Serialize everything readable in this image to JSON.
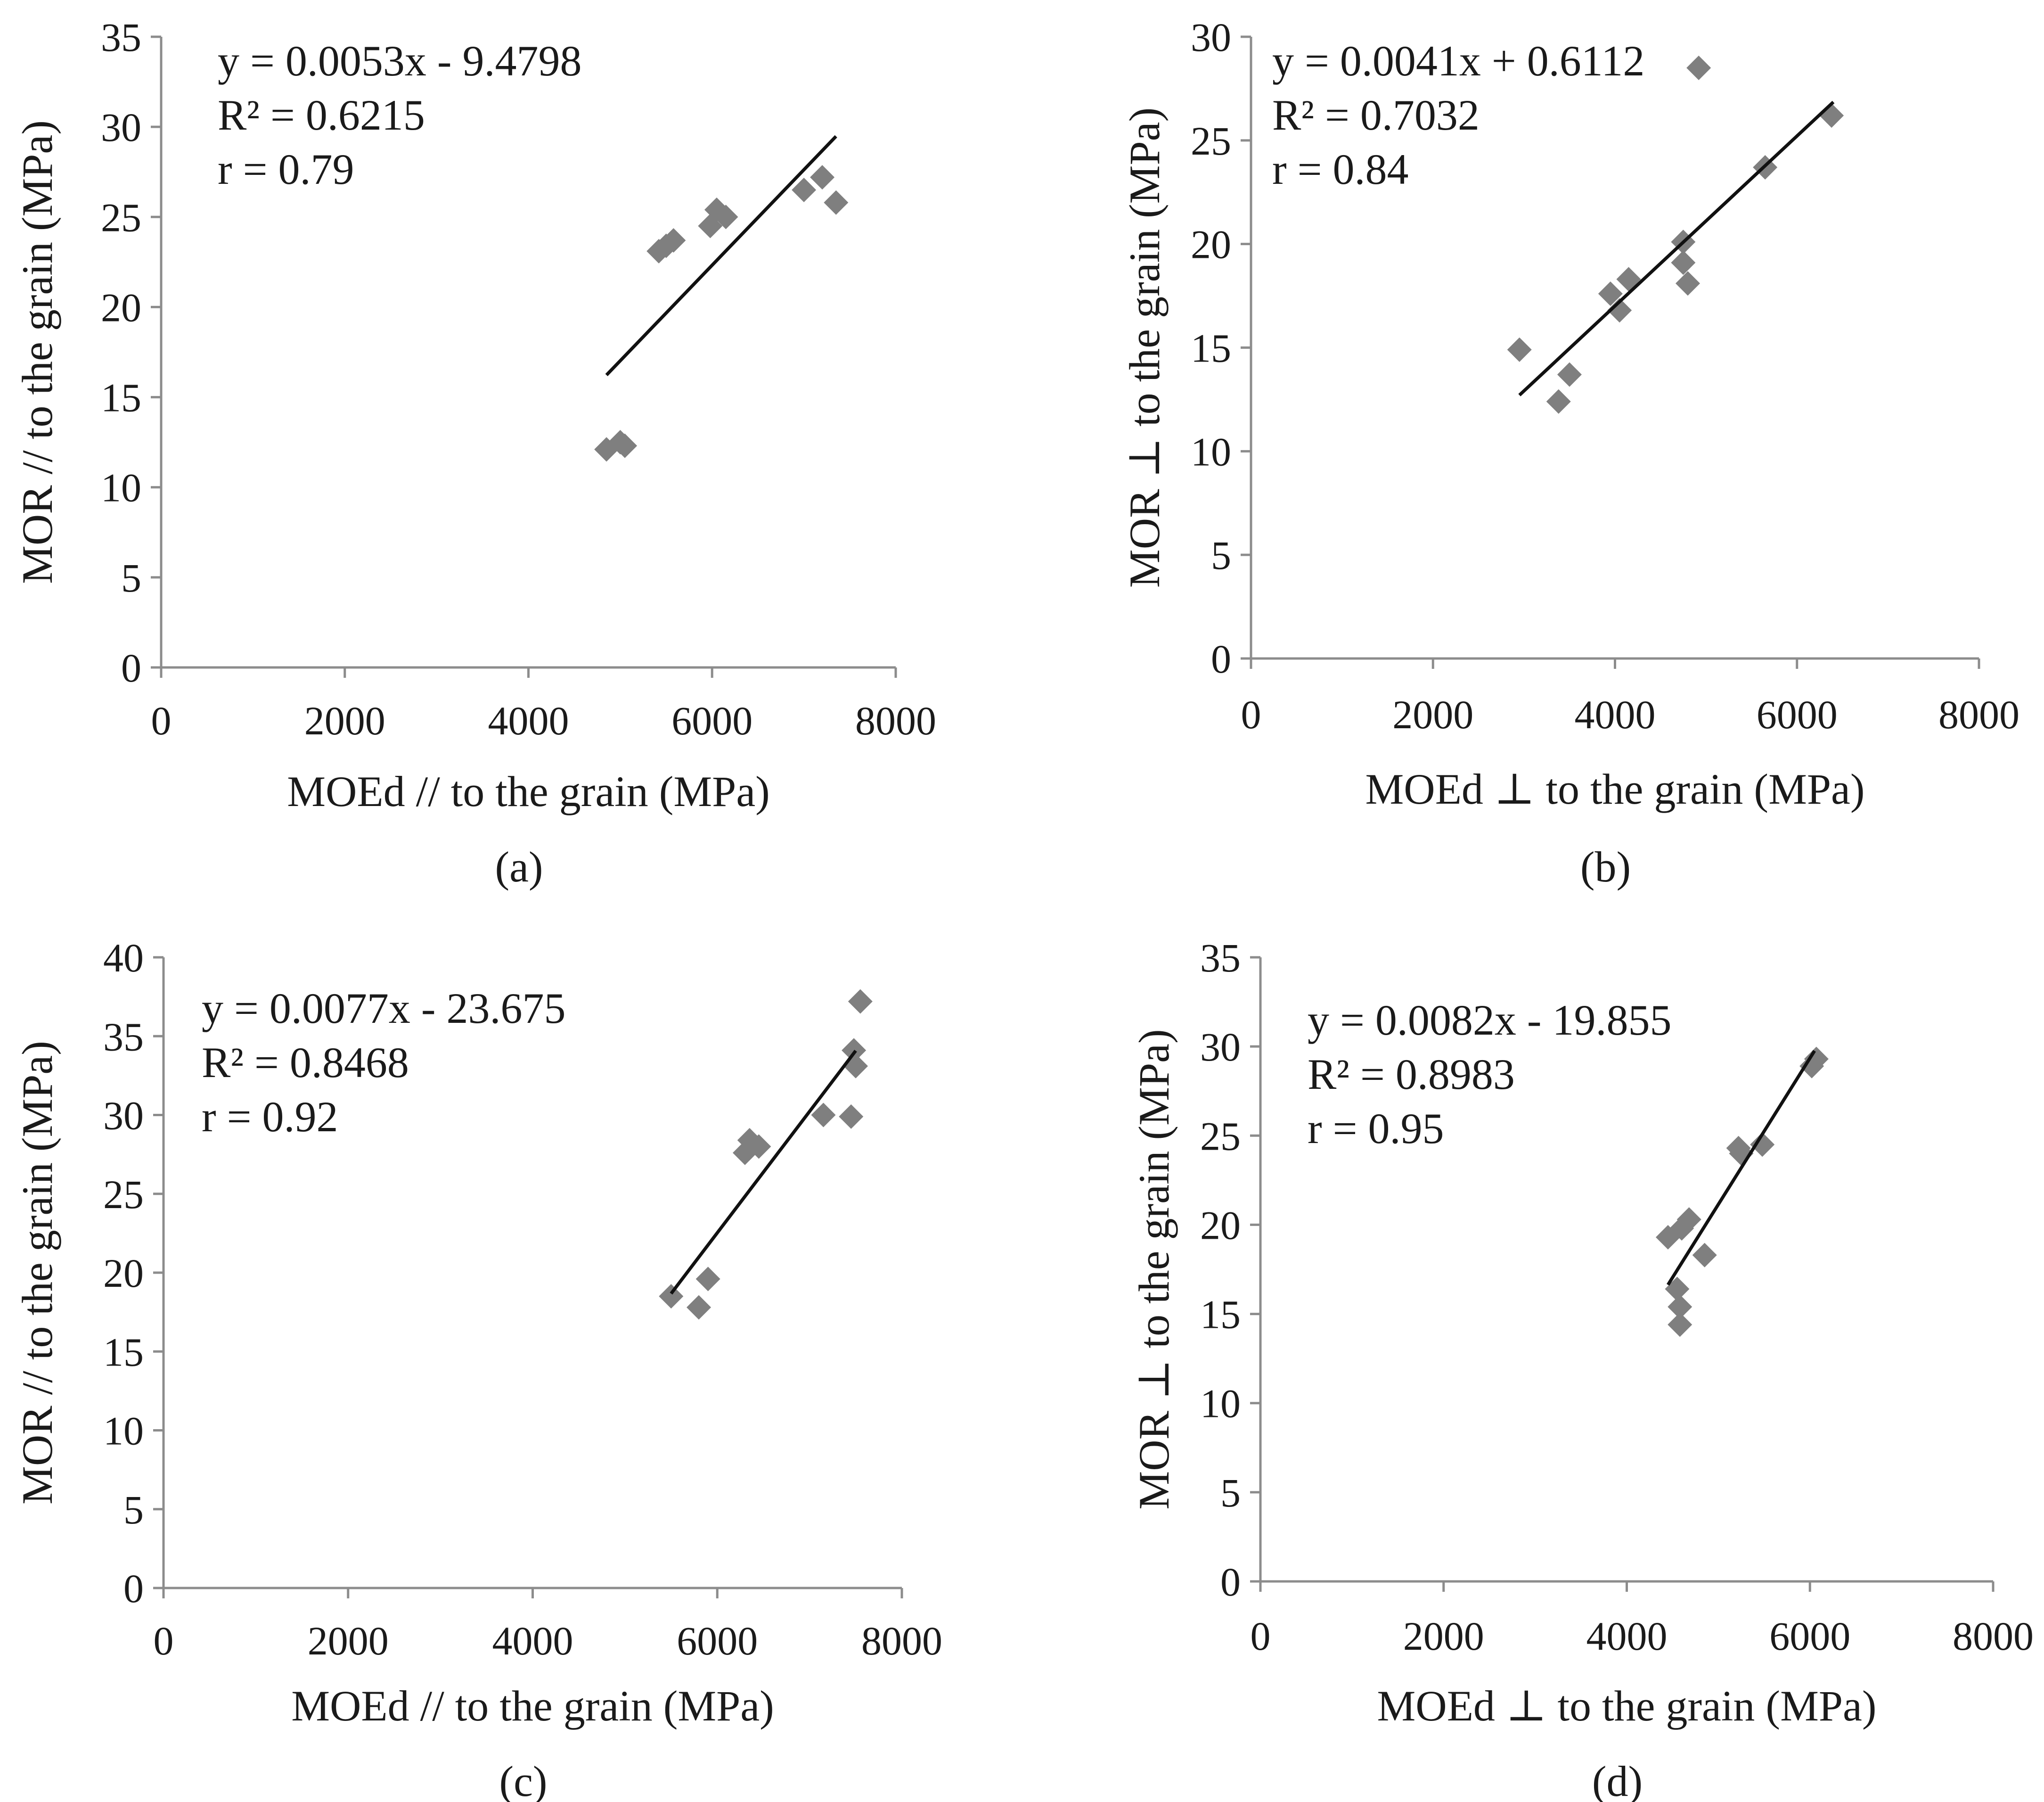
{
  "colors": {
    "marker": "#7f7f7f",
    "axis": "#8c8c8c",
    "trendline": "#111111",
    "text": "#1a1a1a"
  },
  "chart_data": [
    {
      "type": "scatter",
      "panel_label": "(a)",
      "xlabel": "MOEd // to the grain (MPa)",
      "ylabel": "MOR // to the grain (MPa)",
      "xlim": [
        0,
        8000
      ],
      "ylim": [
        0,
        35
      ],
      "xticks": [
        0,
        2000,
        4000,
        6000,
        8000
      ],
      "yticks": [
        0,
        5,
        10,
        15,
        20,
        25,
        30,
        35
      ],
      "grid": false,
      "marker": "diamond",
      "trendline": {
        "slope": 0.0053,
        "intercept": -9.4798,
        "x_range": [
          4850,
          7350
        ]
      },
      "annotations": [
        "y = 0.0053x - 9.4798",
        "R² = 0.6215",
        "r = 0.79"
      ],
      "points": [
        {
          "x": 4850,
          "y": 12.1
        },
        {
          "x": 5000,
          "y": 12.5
        },
        {
          "x": 5050,
          "y": 12.3
        },
        {
          "x": 5420,
          "y": 23.1
        },
        {
          "x": 5500,
          "y": 23.4
        },
        {
          "x": 5580,
          "y": 23.7
        },
        {
          "x": 5980,
          "y": 24.5
        },
        {
          "x": 6050,
          "y": 25.4
        },
        {
          "x": 6150,
          "y": 25.0
        },
        {
          "x": 7000,
          "y": 26.5
        },
        {
          "x": 7200,
          "y": 27.2
        },
        {
          "x": 7350,
          "y": 25.8
        }
      ]
    },
    {
      "type": "scatter",
      "panel_label": "(b)",
      "xlabel": "MOEd ⊥ to the grain (MPa)",
      "ylabel": "MOR ⊥ to the grain (MPa)",
      "xlim": [
        0,
        8000
      ],
      "ylim": [
        0,
        30
      ],
      "xticks": [
        0,
        2000,
        4000,
        6000,
        8000
      ],
      "yticks": [
        0,
        5,
        10,
        15,
        20,
        25,
        30
      ],
      "grid": false,
      "marker": "diamond",
      "trendline": {
        "slope": 0.0041,
        "intercept": 0.6112,
        "x_range": [
          2950,
          6400
        ]
      },
      "annotations": [
        "y = 0.0041x + 0.6112",
        "R² = 0.7032",
        "r = 0.84"
      ],
      "points": [
        {
          "x": 2950,
          "y": 14.9
        },
        {
          "x": 3380,
          "y": 12.4
        },
        {
          "x": 3500,
          "y": 13.7
        },
        {
          "x": 3950,
          "y": 17.6
        },
        {
          "x": 4050,
          "y": 16.8
        },
        {
          "x": 4150,
          "y": 18.3
        },
        {
          "x": 4750,
          "y": 20.1
        },
        {
          "x": 4750,
          "y": 19.1
        },
        {
          "x": 4800,
          "y": 18.1
        },
        {
          "x": 4920,
          "y": 28.5
        },
        {
          "x": 5650,
          "y": 23.7
        },
        {
          "x": 6380,
          "y": 26.2
        }
      ]
    },
    {
      "type": "scatter",
      "panel_label": "(c)",
      "xlabel": "MOEd // to the grain (MPa)",
      "ylabel": "MOR // to the grain (MPa)",
      "xlim": [
        0,
        8000
      ],
      "ylim": [
        0,
        40
      ],
      "xticks": [
        0,
        2000,
        4000,
        6000,
        8000
      ],
      "yticks": [
        0,
        5,
        10,
        15,
        20,
        25,
        30,
        35,
        40
      ],
      "grid": false,
      "marker": "diamond",
      "trendline": {
        "slope": 0.0077,
        "intercept": -23.675,
        "x_range": [
          5500,
          7500
        ]
      },
      "annotations": [
        "y = 0.0077x - 23.675",
        "R² = 0.8468",
        "r = 0.92"
      ],
      "points": [
        {
          "x": 5500,
          "y": 18.5
        },
        {
          "x": 5800,
          "y": 17.8
        },
        {
          "x": 5900,
          "y": 19.6
        },
        {
          "x": 6300,
          "y": 27.6
        },
        {
          "x": 6350,
          "y": 28.4
        },
        {
          "x": 6450,
          "y": 28.0
        },
        {
          "x": 7150,
          "y": 30.0
        },
        {
          "x": 7450,
          "y": 29.9
        },
        {
          "x": 7480,
          "y": 34.1
        },
        {
          "x": 7500,
          "y": 33.1
        },
        {
          "x": 7550,
          "y": 37.2
        }
      ]
    },
    {
      "type": "scatter",
      "panel_label": "(d)",
      "xlabel": "MOEd ⊥ to the grain (MPa)",
      "ylabel": "MOR ⊥ to the grain (MPa)",
      "xlim": [
        0,
        8000
      ],
      "ylim": [
        0,
        35
      ],
      "xticks": [
        0,
        2000,
        4000,
        6000,
        8000
      ],
      "yticks": [
        0,
        5,
        10,
        15,
        20,
        25,
        30,
        35
      ],
      "grid": false,
      "marker": "diamond",
      "trendline": {
        "slope": 0.0082,
        "intercept": -19.855,
        "x_range": [
          4450,
          6050
        ]
      },
      "annotations": [
        "y = 0.0082x - 19.855",
        "R² = 0.8983",
        "r = 0.95"
      ],
      "points": [
        {
          "x": 4450,
          "y": 19.3
        },
        {
          "x": 4550,
          "y": 16.4
        },
        {
          "x": 4580,
          "y": 15.4
        },
        {
          "x": 4580,
          "y": 14.4
        },
        {
          "x": 4600,
          "y": 19.8
        },
        {
          "x": 4680,
          "y": 20.3
        },
        {
          "x": 4850,
          "y": 18.3
        },
        {
          "x": 5220,
          "y": 24.3
        },
        {
          "x": 5250,
          "y": 24.0
        },
        {
          "x": 5480,
          "y": 24.5
        },
        {
          "x": 6020,
          "y": 28.9
        },
        {
          "x": 6070,
          "y": 29.3
        }
      ]
    }
  ]
}
